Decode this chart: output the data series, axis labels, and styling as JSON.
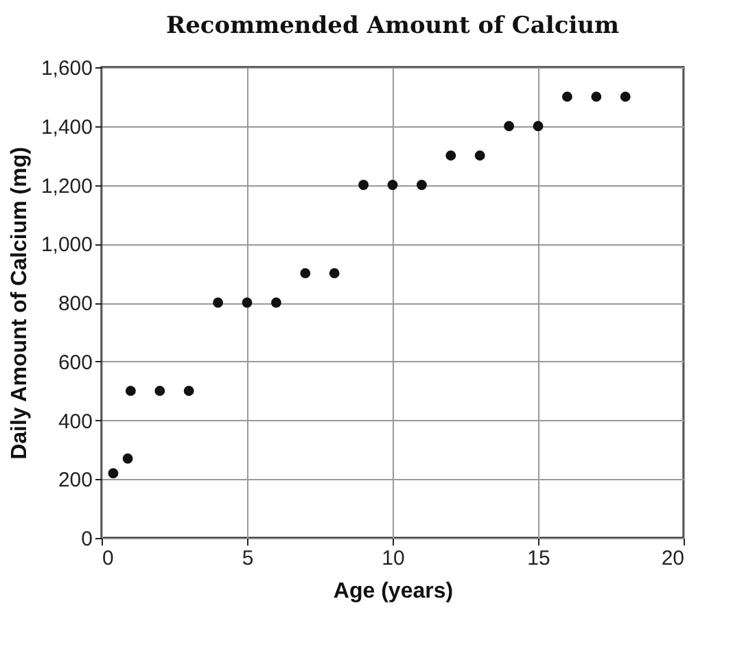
{
  "chart_data": {
    "type": "scatter",
    "title": "Recommended Amount of Calcium",
    "xlabel": "Age (years)",
    "ylabel": "Daily Amount of Calcium (mg)",
    "x": [
      0.4,
      0.9,
      1,
      2,
      3,
      4,
      5,
      6,
      7,
      8,
      9,
      10,
      11,
      12,
      13,
      14,
      15,
      16,
      17,
      18
    ],
    "values": [
      220,
      270,
      500,
      500,
      500,
      800,
      800,
      800,
      900,
      900,
      1200,
      1200,
      1200,
      1300,
      1300,
      1400,
      1400,
      1500,
      1500,
      1500
    ],
    "color": "#111111",
    "marker": "circle",
    "grid": true,
    "xlim": [
      0,
      20
    ],
    "xticks": [
      0,
      5,
      10,
      15,
      20
    ],
    "ylim": [
      0,
      1600
    ],
    "yticks": [
      0,
      200,
      400,
      600,
      800,
      {
        "value": 1000,
        "label": "1,000"
      },
      {
        "value": 1200,
        "label": "1,200"
      },
      {
        "value": 1400,
        "label": "1,400"
      },
      {
        "value": 1600,
        "label": "1,600"
      }
    ]
  }
}
